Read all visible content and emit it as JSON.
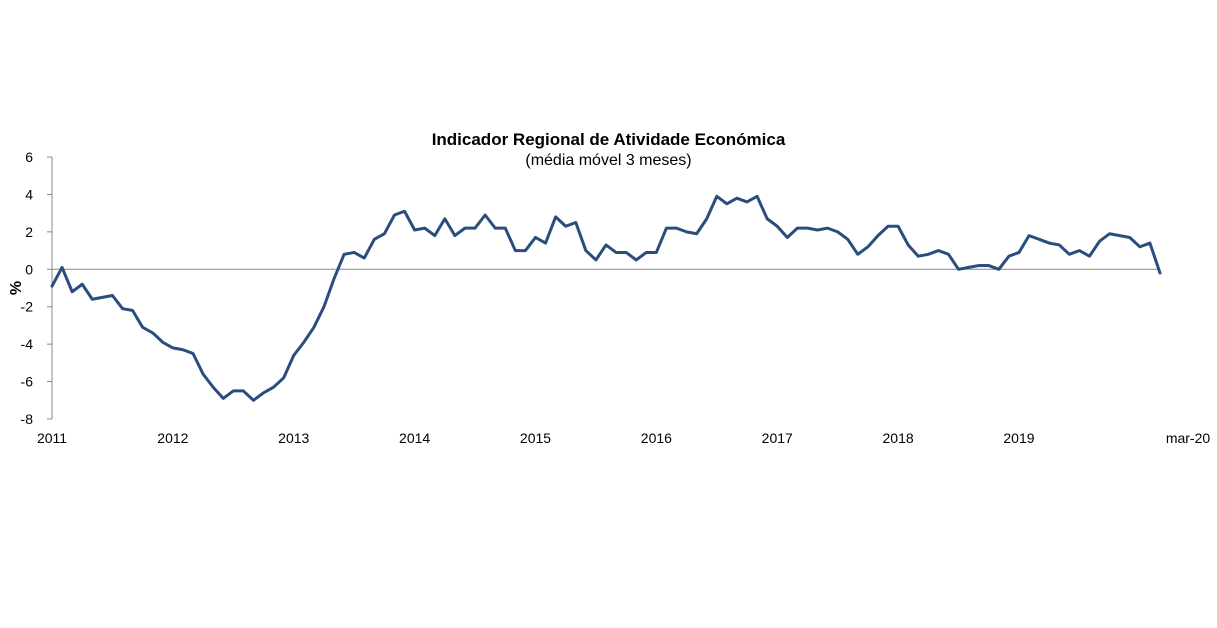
{
  "chart_data": {
    "type": "line",
    "title": "Indicador Regional de Atividade Económica",
    "subtitle": "(média móvel 3 meses)",
    "xlabel": "",
    "ylabel": "%",
    "ylim": [
      -8,
      6
    ],
    "yticks": [
      "6",
      "4",
      "2",
      "0",
      "-2",
      "-4",
      "-6",
      "-8"
    ],
    "xticks": [
      "2011",
      "2012",
      "2013",
      "2014",
      "2015",
      "2016",
      "2017",
      "2018",
      "2019",
      "mar-20"
    ],
    "grid": false,
    "line_color": "#2b4d7e",
    "series": [
      {
        "x_start": "2011-01",
        "x_end": "2020-03",
        "values": [
          -0.9,
          0.1,
          -1.2,
          -0.8,
          -1.6,
          -1.5,
          -1.4,
          -2.1,
          -2.2,
          -3.1,
          -3.4,
          -3.9,
          -4.2,
          -4.3,
          -4.5,
          -5.6,
          -6.3,
          -6.9,
          -6.5,
          -6.5,
          -7.0,
          -6.6,
          -6.3,
          -5.8,
          -4.6,
          -3.9,
          -3.1,
          -2.0,
          -0.5,
          0.8,
          0.9,
          0.6,
          1.6,
          1.9,
          2.9,
          3.1,
          2.1,
          2.2,
          1.8,
          2.7,
          1.8,
          2.2,
          2.2,
          2.9,
          2.2,
          2.2,
          1.0,
          1.0,
          1.7,
          1.4,
          2.8,
          2.3,
          2.5,
          1.0,
          0.5,
          1.3,
          0.9,
          0.9,
          0.5,
          0.9,
          0.9,
          2.2,
          2.2,
          2.0,
          1.9,
          2.7,
          3.9,
          3.5,
          3.8,
          3.6,
          3.9,
          2.7,
          2.3,
          1.7,
          2.2,
          2.2,
          2.1,
          2.2,
          2.0,
          1.6,
          0.8,
          1.2,
          1.8,
          2.3,
          2.3,
          1.3,
          0.7,
          0.8,
          1.0,
          0.8,
          0.0,
          0.1,
          0.2,
          0.2,
          0.0,
          0.7,
          0.9,
          1.8,
          1.6,
          1.4,
          1.3,
          0.8,
          1.0,
          0.7,
          1.5,
          1.9,
          1.8,
          1.7,
          1.2,
          1.4,
          -0.2
        ]
      }
    ]
  }
}
